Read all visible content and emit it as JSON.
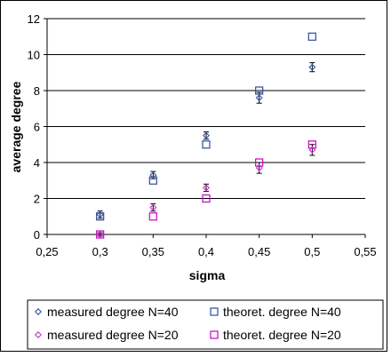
{
  "chart_data": {
    "type": "scatter",
    "title": "",
    "xlabel": "sigma",
    "ylabel": "average degree",
    "xlim": [
      0.25,
      0.55
    ],
    "ylim": [
      0,
      12
    ],
    "x_ticks": [
      0.25,
      0.3,
      0.35,
      0.4,
      0.45,
      0.5,
      0.55
    ],
    "x_tick_labels": [
      "0,25",
      "0,3",
      "0,35",
      "0,4",
      "0,45",
      "0,5",
      "0,55"
    ],
    "y_ticks": [
      0,
      2,
      4,
      6,
      8,
      10,
      12
    ],
    "y_tick_labels": [
      "0",
      "2",
      "4",
      "6",
      "8",
      "10",
      "12"
    ],
    "grid": "horizontal",
    "legend_position": "bottom",
    "series": [
      {
        "name": "measured degree N=40",
        "marker": "diamond",
        "color": "#3355aa",
        "error_bars": true,
        "x": [
          0.3,
          0.35,
          0.4,
          0.45,
          0.5
        ],
        "y": [
          1.1,
          3.3,
          5.5,
          7.6,
          9.3
        ],
        "err": [
          0.2,
          0.2,
          0.2,
          0.3,
          0.25
        ]
      },
      {
        "name": "theoret. degree N=40",
        "marker": "square",
        "color": "#2e4a9e",
        "x": [
          0.3,
          0.35,
          0.4,
          0.45,
          0.5
        ],
        "y": [
          1.0,
          3.0,
          5.0,
          8.0,
          11.0
        ]
      },
      {
        "name": "measured degree N=20",
        "marker": "diamond",
        "color": "#cc33cc",
        "error_bars": true,
        "x": [
          0.3,
          0.35,
          0.4,
          0.45,
          0.5
        ],
        "y": [
          0.0,
          1.5,
          2.6,
          3.7,
          4.7
        ],
        "err": [
          0.1,
          0.2,
          0.2,
          0.3,
          0.3
        ]
      },
      {
        "name": "theoret. degree N=20",
        "marker": "square",
        "color": "#cc00cc",
        "x": [
          0.3,
          0.35,
          0.4,
          0.45,
          0.5
        ],
        "y": [
          0.0,
          1.0,
          2.0,
          4.0,
          5.0
        ]
      }
    ],
    "error_bar_color": "#000000"
  }
}
